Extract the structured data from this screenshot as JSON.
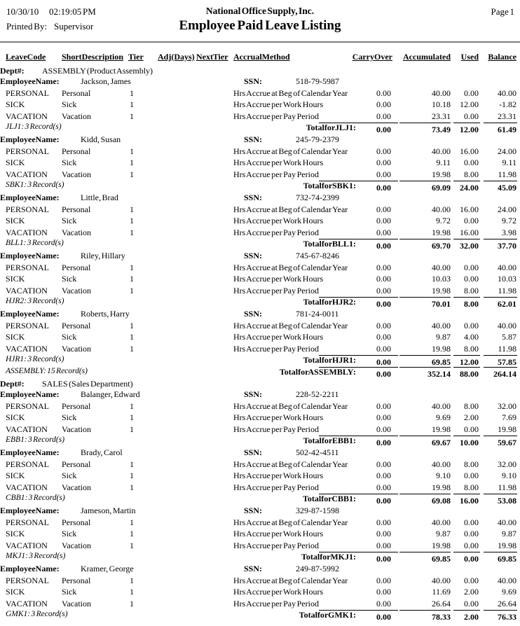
{
  "report": {
    "date": "10/30/10",
    "time": "02:19:05 PM",
    "company": "National Office Supply, Inc.",
    "page_number": "Page 1",
    "printed_by_label": "Printed By:",
    "printed_by": "Supervisor",
    "title": "Employee Paid Leave Listing"
  },
  "labels": {
    "dept": "Dept#:",
    "employee_name": "Employee Name:",
    "ssn": "SSN:"
  },
  "columns": [
    "Leave Code",
    "Short Description",
    "Tier",
    "Adj(Days)",
    "Next Tier",
    "Accrual Method",
    "Carry Over",
    "Accumulated",
    "Used",
    "Balance"
  ],
  "departments": [
    {
      "name": "ASSEMBLY (Product Assembly)",
      "employees": [
        {
          "name": "Jackson, James",
          "ssn": "518-79-5987",
          "rows": [
            {
              "code": "PERSONAL",
              "desc": "Personal",
              "tier": "1",
              "method": "Hrs Accrue at Beg of Calendar Year",
              "carry": "0.00",
              "accum": "40.00",
              "used": "0.00",
              "balance": "40.00"
            },
            {
              "code": "SICK",
              "desc": "Sick",
              "tier": "1",
              "method": "Hrs Accrue per Work Hours",
              "carry": "0.00",
              "accum": "10.18",
              "used": "12.00",
              "balance": "-1.82"
            },
            {
              "code": "VACATION",
              "desc": "Vacation",
              "tier": "1",
              "method": "Hrs Accrue per Pay Period",
              "carry": "0.00",
              "accum": "23.31",
              "used": "0.00",
              "balance": "23.31"
            }
          ],
          "footer": {
            "left": "JLJ1: 3 Record(s)",
            "total_label": "Total for JLJ1 :",
            "carry": "0.00",
            "accum": "73.49",
            "used": "12.00",
            "balance": "61.49"
          }
        },
        {
          "name": "Kidd, Susan",
          "ssn": "245-79-2379",
          "rows": [
            {
              "code": "PERSONAL",
              "desc": "Personal",
              "tier": "1",
              "method": "Hrs Accrue at Beg of Calendar Year",
              "carry": "0.00",
              "accum": "40.00",
              "used": "16.00",
              "balance": "24.00"
            },
            {
              "code": "SICK",
              "desc": "Sick",
              "tier": "1",
              "method": "Hrs Accrue per Work Hours",
              "carry": "0.00",
              "accum": "9.11",
              "used": "0.00",
              "balance": "9.11"
            },
            {
              "code": "VACATION",
              "desc": "Vacation",
              "tier": "1",
              "method": "Hrs Accrue per Pay Period",
              "carry": "0.00",
              "accum": "19.98",
              "used": "8.00",
              "balance": "11.98"
            }
          ],
          "footer": {
            "left": "SBK1: 3 Record(s)",
            "total_label": "Total for SBK1 :",
            "carry": "0.00",
            "accum": "69.09",
            "used": "24.00",
            "balance": "45.09"
          }
        },
        {
          "name": "Little, Brad",
          "ssn": "732-74-2399",
          "rows": [
            {
              "code": "PERSONAL",
              "desc": "Personal",
              "tier": "1",
              "method": "Hrs Accrue at Beg of Calendar Year",
              "carry": "0.00",
              "accum": "40.00",
              "used": "16.00",
              "balance": "24.00"
            },
            {
              "code": "SICK",
              "desc": "Sick",
              "tier": "1",
              "method": "Hrs Accrue per Work Hours",
              "carry": "0.00",
              "accum": "9.72",
              "used": "0.00",
              "balance": "9.72"
            },
            {
              "code": "VACATION",
              "desc": "Vacation",
              "tier": "1",
              "method": "Hrs Accrue per Pay Period",
              "carry": "0.00",
              "accum": "19.98",
              "used": "16.00",
              "balance": "3.98"
            }
          ],
          "footer": {
            "left": "BLL1: 3 Record(s)",
            "total_label": "Total for BLL1 :",
            "carry": "0.00",
            "accum": "69.70",
            "used": "32.00",
            "balance": "37.70"
          }
        },
        {
          "name": "Riley, Hillary",
          "ssn": "745-67-8246",
          "rows": [
            {
              "code": "PERSONAL",
              "desc": "Personal",
              "tier": "1",
              "method": "Hrs Accrue at Beg of Calendar Year",
              "carry": "0.00",
              "accum": "40.00",
              "used": "0.00",
              "balance": "40.00"
            },
            {
              "code": "SICK",
              "desc": "Sick",
              "tier": "1",
              "method": "Hrs Accrue per Work Hours",
              "carry": "0.00",
              "accum": "10.03",
              "used": "0.00",
              "balance": "10.03"
            },
            {
              "code": "VACATION",
              "desc": "Vacation",
              "tier": "1",
              "method": "Hrs Accrue per Pay Period",
              "carry": "0.00",
              "accum": "19.98",
              "used": "8.00",
              "balance": "11.98"
            }
          ],
          "footer": {
            "left": "HJR2: 3 Record(s)",
            "total_label": "Total for HJR2 :",
            "carry": "0.00",
            "accum": "70.01",
            "used": "8.00",
            "balance": "62.01"
          }
        },
        {
          "name": "Roberts, Harry",
          "ssn": "781-24-0011",
          "rows": [
            {
              "code": "PERSONAL",
              "desc": "Personal",
              "tier": "1",
              "method": "Hrs Accrue at Beg of Calendar Year",
              "carry": "0.00",
              "accum": "40.00",
              "used": "0.00",
              "balance": "40.00"
            },
            {
              "code": "SICK",
              "desc": "Sick",
              "tier": "1",
              "method": "Hrs Accrue per Work Hours",
              "carry": "0.00",
              "accum": "9.87",
              "used": "4.00",
              "balance": "5.87"
            },
            {
              "code": "VACATION",
              "desc": "Vacation",
              "tier": "1",
              "method": "Hrs Accrue per Pay Period",
              "carry": "0.00",
              "accum": "19.98",
              "used": "8.00",
              "balance": "11.98"
            }
          ],
          "footer": {
            "left": "HJR1: 3 Record(s)",
            "total_label": "Total for HJR1 :",
            "carry": "0.00",
            "accum": "69.85",
            "used": "12.00",
            "balance": "57.85"
          }
        }
      ],
      "footer": {
        "left": "ASSEMBLY: 15 Record(s)",
        "total_label": "Total for ASSEMBLY :",
        "carry": "0.00",
        "accum": "352.14",
        "used": "88.00",
        "balance": "264.14"
      }
    },
    {
      "name": "SALES (Sales Department)",
      "employees": [
        {
          "name": "Balanger, Edward",
          "ssn": "228-52-2211",
          "rows": [
            {
              "code": "PERSONAL",
              "desc": "Personal",
              "tier": "1",
              "method": "Hrs Accrue at Beg of Calendar Year",
              "carry": "0.00",
              "accum": "40.00",
              "used": "8.00",
              "balance": "32.00"
            },
            {
              "code": "SICK",
              "desc": "Sick",
              "tier": "1",
              "method": "Hrs Accrue per Work Hours",
              "carry": "0.00",
              "accum": "9.69",
              "used": "2.00",
              "balance": "7.69"
            },
            {
              "code": "VACATION",
              "desc": "Vacation",
              "tier": "1",
              "method": "Hrs Accrue per Pay Period",
              "carry": "0.00",
              "accum": "19.98",
              "used": "0.00",
              "balance": "19.98"
            }
          ],
          "footer": {
            "left": "EBB1: 3 Record(s)",
            "total_label": "Total for EBB1 :",
            "carry": "0.00",
            "accum": "69.67",
            "used": "10.00",
            "balance": "59.67"
          }
        },
        {
          "name": "Brady, Carol",
          "ssn": "502-42-4511",
          "rows": [
            {
              "code": "PERSONAL",
              "desc": "Personal",
              "tier": "1",
              "method": "Hrs Accrue at Beg of Calendar Year",
              "carry": "0.00",
              "accum": "40.00",
              "used": "8.00",
              "balance": "32.00"
            },
            {
              "code": "SICK",
              "desc": "Sick",
              "tier": "1",
              "method": "Hrs Accrue per Work Hours",
              "carry": "0.00",
              "accum": "9.10",
              "used": "0.00",
              "balance": "9.10"
            },
            {
              "code": "VACATION",
              "desc": "Vacation",
              "tier": "1",
              "method": "Hrs Accrue per Pay Period",
              "carry": "0.00",
              "accum": "19.98",
              "used": "8.00",
              "balance": "11.98"
            }
          ],
          "footer": {
            "left": "CBB1: 3 Record(s)",
            "total_label": "Total for CBB1 :",
            "carry": "0.00",
            "accum": "69.08",
            "used": "16.00",
            "balance": "53.08"
          }
        },
        {
          "name": "Jameson, Martin",
          "ssn": "329-87-1598",
          "rows": [
            {
              "code": "PERSONAL",
              "desc": "Personal",
              "tier": "1",
              "method": "Hrs Accrue at Beg of Calendar Year",
              "carry": "0.00",
              "accum": "40.00",
              "used": "0.00",
              "balance": "40.00"
            },
            {
              "code": "SICK",
              "desc": "Sick",
              "tier": "1",
              "method": "Hrs Accrue per Work Hours",
              "carry": "0.00",
              "accum": "9.87",
              "used": "0.00",
              "balance": "9.87"
            },
            {
              "code": "VACATION",
              "desc": "Vacation",
              "tier": "1",
              "method": "Hrs Accrue per Pay Period",
              "carry": "0.00",
              "accum": "19.98",
              "used": "0.00",
              "balance": "19.98"
            }
          ],
          "footer": {
            "left": "MKJ1: 3 Record(s)",
            "total_label": "Total for MKJ1 :",
            "carry": "0.00",
            "accum": "69.85",
            "used": "0.00",
            "balance": "69.85"
          }
        },
        {
          "name": "Kramer, George",
          "ssn": "249-87-5992",
          "rows": [
            {
              "code": "PERSONAL",
              "desc": "Personal",
              "tier": "1",
              "method": "Hrs Accrue at Beg of Calendar Year",
              "carry": "0.00",
              "accum": "40.00",
              "used": "0.00",
              "balance": "40.00"
            },
            {
              "code": "SICK",
              "desc": "Sick",
              "tier": "1",
              "method": "Hrs Accrue per Work Hours",
              "carry": "0.00",
              "accum": "11.69",
              "used": "2.00",
              "balance": "9.69"
            },
            {
              "code": "VACATION",
              "desc": "Vacation",
              "tier": "1",
              "method": "Hrs Accrue per Pay Period",
              "carry": "0.00",
              "accum": "26.64",
              "used": "0.00",
              "balance": "26.64"
            }
          ],
          "footer": {
            "left": "GMK1: 3 Record(s)",
            "total_label": "Total for GMK1 :",
            "carry": "0.00",
            "accum": "78.33",
            "used": "2.00",
            "balance": "76.33"
          }
        }
      ]
    }
  ]
}
